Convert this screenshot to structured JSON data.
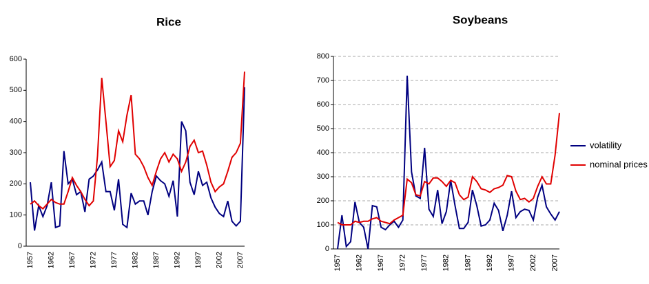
{
  "chart_data": [
    {
      "type": "line",
      "title": "Rice",
      "categories": [
        "1957",
        null,
        null,
        null,
        null,
        "1962",
        null,
        null,
        null,
        null,
        "1967",
        null,
        null,
        null,
        null,
        "1972",
        null,
        null,
        null,
        null,
        "1977",
        null,
        null,
        null,
        null,
        "1982",
        null,
        null,
        null,
        null,
        "1987",
        null,
        null,
        null,
        null,
        "1992",
        null,
        null,
        null,
        null,
        "1997",
        null,
        null,
        null,
        null,
        "2002",
        null,
        null,
        null,
        null,
        "2007",
        null
      ],
      "series": [
        {
          "color": "#000080",
          "values": [
            205,
            50,
            130,
            95,
            130,
            205,
            60,
            65,
            305,
            200,
            215,
            165,
            175,
            110,
            215,
            225,
            245,
            270,
            175,
            175,
            115,
            215,
            70,
            60,
            170,
            135,
            145,
            145,
            100,
            175,
            225,
            210,
            200,
            160,
            210,
            95,
            400,
            370,
            205,
            165,
            240,
            195,
            205,
            155,
            125,
            105,
            95,
            145,
            80,
            65,
            80,
            510
          ]
        },
        {
          "color": "#e00000",
          "values": [
            135,
            145,
            130,
            120,
            135,
            150,
            140,
            135,
            135,
            175,
            220,
            195,
            175,
            150,
            130,
            145,
            290,
            540,
            400,
            255,
            275,
            370,
            335,
            420,
            485,
            295,
            280,
            255,
            220,
            195,
            240,
            280,
            300,
            270,
            295,
            280,
            240,
            270,
            320,
            340,
            300,
            305,
            260,
            205,
            175,
            190,
            200,
            240,
            285,
            300,
            330,
            560
          ]
        }
      ],
      "ylim": [
        0,
        600
      ],
      "yticks": [
        0,
        100,
        200,
        300,
        400,
        500,
        600
      ],
      "grid": false,
      "legend": false
    },
    {
      "type": "line",
      "title": "Soybeans",
      "categories": [
        "1957",
        null,
        null,
        null,
        null,
        "1962",
        null,
        null,
        null,
        null,
        "1967",
        null,
        null,
        null,
        null,
        "1972",
        null,
        null,
        null,
        null,
        "1977",
        null,
        null,
        null,
        null,
        "1982",
        null,
        null,
        null,
        null,
        "1987",
        null,
        null,
        null,
        null,
        "1992",
        null,
        null,
        null,
        null,
        "1997",
        null,
        null,
        null,
        null,
        "2002",
        null,
        null,
        null,
        null,
        "2007",
        null
      ],
      "series": [
        {
          "name": "volatility",
          "color": "#000080",
          "values": [
            0,
            140,
            10,
            30,
            195,
            110,
            90,
            0,
            180,
            175,
            90,
            80,
            100,
            115,
            90,
            120,
            720,
            320,
            220,
            210,
            420,
            165,
            135,
            245,
            105,
            155,
            285,
            180,
            85,
            85,
            110,
            245,
            180,
            95,
            100,
            120,
            190,
            160,
            75,
            140,
            240,
            130,
            155,
            165,
            160,
            120,
            215,
            265,
            175,
            145,
            120,
            155
          ]
        },
        {
          "name": "nominal prices",
          "color": "#e00000",
          "values": [
            110,
            100,
            100,
            100,
            115,
            110,
            115,
            115,
            125,
            130,
            115,
            110,
            105,
            120,
            130,
            140,
            290,
            275,
            225,
            220,
            280,
            270,
            295,
            295,
            280,
            260,
            285,
            275,
            225,
            205,
            215,
            300,
            280,
            250,
            245,
            235,
            250,
            255,
            265,
            305,
            300,
            240,
            205,
            210,
            195,
            210,
            260,
            300,
            270,
            270,
            390,
            565
          ]
        }
      ],
      "ylim": [
        0,
        800
      ],
      "yticks": [
        0,
        100,
        200,
        300,
        400,
        500,
        600,
        700,
        800
      ],
      "grid": true,
      "legend": "right"
    }
  ]
}
